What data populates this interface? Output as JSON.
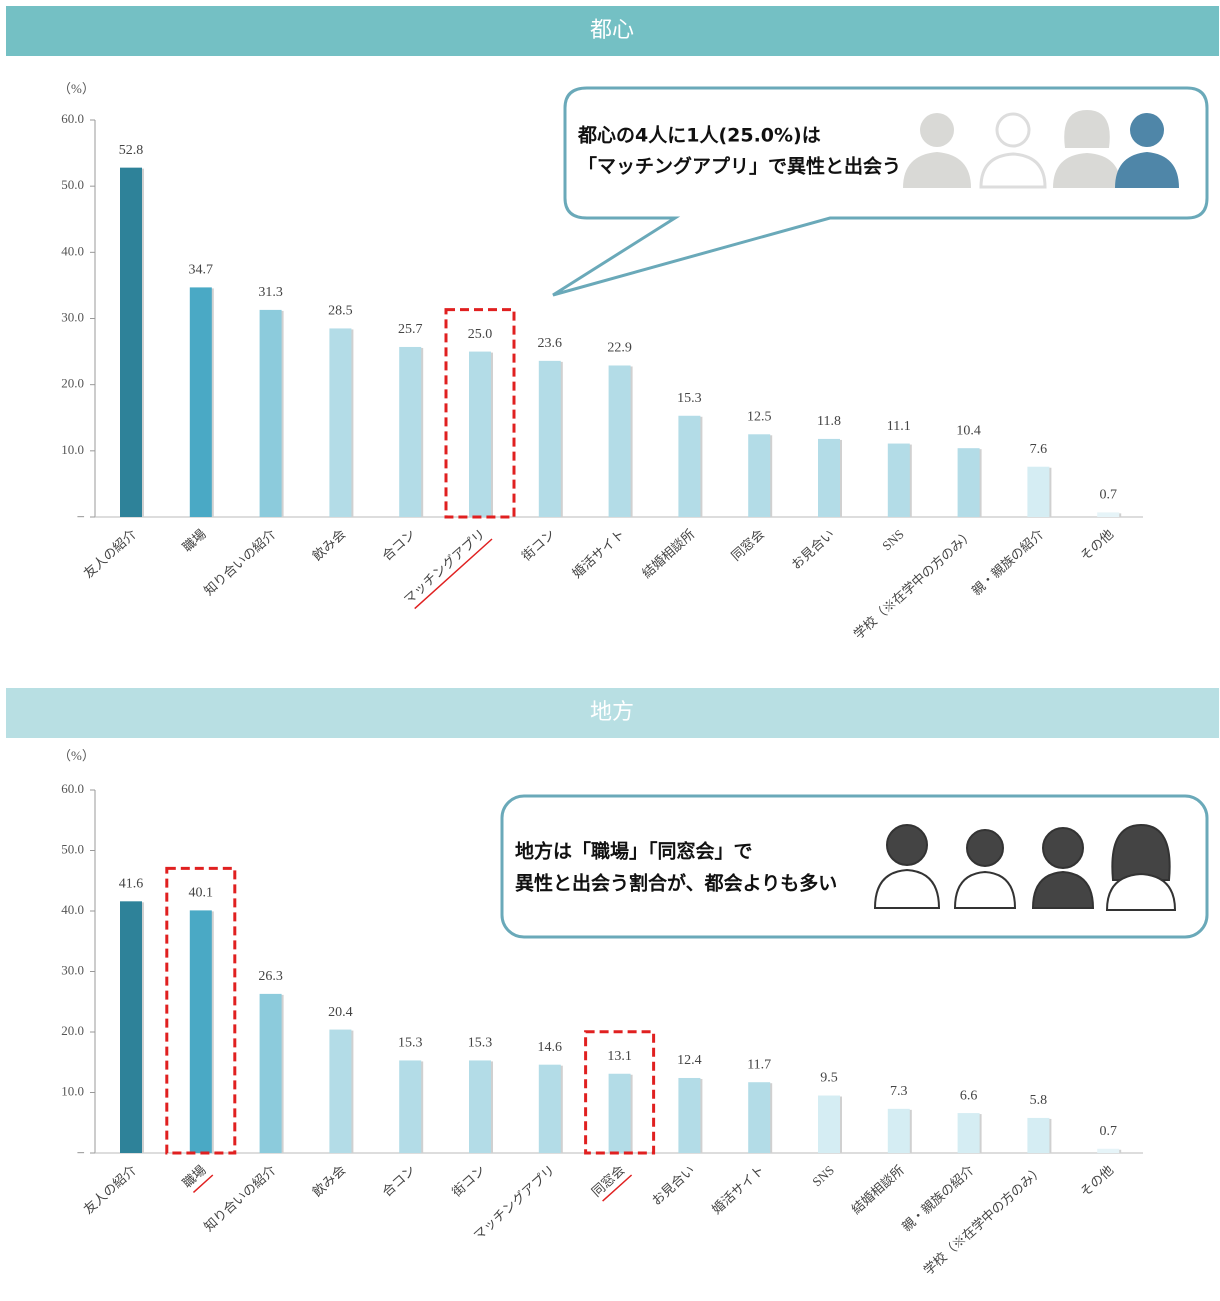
{
  "chart_data": [
    {
      "type": "bar",
      "title": "都心",
      "unit": "（%）",
      "categories": [
        "友人の紹介",
        "職場",
        "知り合いの紹介",
        "飲み会",
        "合コン",
        "マッチングアプリ",
        "街コン",
        "婚活サイト",
        "結婚相談所",
        "同窓会",
        "お見合い",
        "SNS",
        "学校（※在学中の方のみ）",
        "親・親族の紹介",
        "その他"
      ],
      "values": [
        52.8,
        34.7,
        31.3,
        28.5,
        25.7,
        25.0,
        23.6,
        22.9,
        15.3,
        12.5,
        11.8,
        11.1,
        10.4,
        7.6,
        0.7
      ],
      "value_labels": [
        "52.8",
        "34.7",
        "31.3",
        "28.5",
        "25.7",
        "25.0",
        "23.6",
        "22.9",
        "15.3",
        "12.5",
        "11.8",
        "11.1",
        "10.4",
        "7.6",
        "0.7"
      ],
      "colors": [
        "#2e8299",
        "#4aa9c5",
        "#8ccbdc",
        "#b3dce7",
        "#b3dce7",
        "#b3dce7",
        "#b3dce7",
        "#b3dce7",
        "#b3dce7",
        "#b3dce7",
        "#b3dce7",
        "#b3dce7",
        "#b3dce7",
        "#d5edf3",
        "#e6f4f8"
      ],
      "header_color": "#74c0c4",
      "ylim": [
        0,
        60
      ],
      "yticks": [
        {
          "value": 0,
          "label": "–"
        },
        {
          "value": 10,
          "label": "10.0"
        },
        {
          "value": 20,
          "label": "20.0"
        },
        {
          "value": 30,
          "label": "30.0"
        },
        {
          "value": 40,
          "label": "40.0"
        },
        {
          "value": 50,
          "label": "50.0"
        },
        {
          "value": 60,
          "label": "60.0"
        }
      ],
      "highlight_indices": [
        5
      ],
      "annotation": [
        "都心の4人に1人(25.0%)は",
        "「マッチングアプリ」で異性と出会う"
      ]
    },
    {
      "type": "bar",
      "title": "地方",
      "unit": "（%）",
      "categories": [
        "友人の紹介",
        "職場",
        "知り合いの紹介",
        "飲み会",
        "合コン",
        "街コン",
        "マッチングアプリ",
        "同窓会",
        "お見合い",
        "婚活サイト",
        "SNS",
        "結婚相談所",
        "親・親族の紹介",
        "学校（※在学中の方のみ）",
        "その他"
      ],
      "values": [
        41.6,
        40.1,
        26.3,
        20.4,
        15.3,
        15.3,
        14.6,
        13.1,
        12.4,
        11.7,
        9.5,
        7.3,
        6.6,
        5.8,
        0.7
      ],
      "value_labels": [
        "41.6",
        "40.1",
        "26.3",
        "20.4",
        "15.3",
        "15.3",
        "14.6",
        "13.1",
        "12.4",
        "11.7",
        "9.5",
        "7.3",
        "6.6",
        "5.8",
        "0.7"
      ],
      "colors": [
        "#2e8299",
        "#4aa9c5",
        "#8ccbdc",
        "#b3dce7",
        "#b3dce7",
        "#b3dce7",
        "#b3dce7",
        "#b3dce7",
        "#b3dce7",
        "#b3dce7",
        "#d5edf3",
        "#d5edf3",
        "#d5edf3",
        "#d5edf3",
        "#e6f4f8"
      ],
      "header_color": "#b8dfe3",
      "ylim": [
        0,
        60
      ],
      "yticks": [
        {
          "value": 0,
          "label": "–"
        },
        {
          "value": 10,
          "label": "10.0"
        },
        {
          "value": 20,
          "label": "20.0"
        },
        {
          "value": 30,
          "label": "30.0"
        },
        {
          "value": 40,
          "label": "40.0"
        },
        {
          "value": 50,
          "label": "50.0"
        },
        {
          "value": 60,
          "label": "60.0"
        }
      ],
      "highlight_indices": [
        1,
        7
      ],
      "annotation": [
        "地方は「職場」「同窓会」で",
        "異性と出会う割合が、都会よりも多い"
      ]
    }
  ]
}
